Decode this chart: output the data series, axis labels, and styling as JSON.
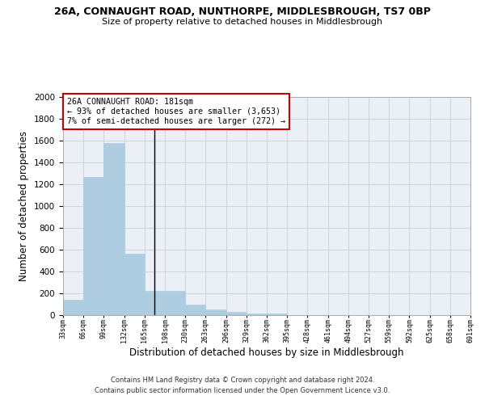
{
  "title": "26A, CONNAUGHT ROAD, NUNTHORPE, MIDDLESBROUGH, TS7 0BP",
  "subtitle": "Size of property relative to detached houses in Middlesbrough",
  "xlabel": "Distribution of detached houses by size in Middlesbrough",
  "ylabel": "Number of detached properties",
  "footer_line1": "Contains HM Land Registry data © Crown copyright and database right 2024.",
  "footer_line2": "Contains public sector information licensed under the Open Government Licence v3.0.",
  "annotation_line1": "26A CONNAUGHT ROAD: 181sqm",
  "annotation_line2": "← 93% of detached houses are smaller (3,653)",
  "annotation_line3": "7% of semi-detached houses are larger (272) →",
  "bar_values": [
    140,
    1270,
    1575,
    565,
    220,
    220,
    95,
    50,
    28,
    15,
    15,
    0,
    0,
    0,
    0,
    0,
    0,
    0,
    0,
    0
  ],
  "bar_labels": [
    "33sqm",
    "66sqm",
    "99sqm",
    "132sqm",
    "165sqm",
    "198sqm",
    "230sqm",
    "263sqm",
    "296sqm",
    "329sqm",
    "362sqm",
    "395sqm",
    "428sqm",
    "461sqm",
    "494sqm",
    "527sqm",
    "559sqm",
    "592sqm",
    "625sqm",
    "658sqm",
    "691sqm"
  ],
  "highlight_bar_index": 4,
  "bar_color": "#aecde1",
  "highlight_color": "#aecde1",
  "bg_color": "#eaf0f6",
  "grid_color": "#c5cfdb",
  "ylim": [
    0,
    2000
  ],
  "yticks": [
    0,
    200,
    400,
    600,
    800,
    1000,
    1200,
    1400,
    1600,
    1800,
    2000
  ],
  "annotation_box_color": "#cc0000",
  "fig_width": 6.0,
  "fig_height": 5.0,
  "property_line_x": 4.48
}
